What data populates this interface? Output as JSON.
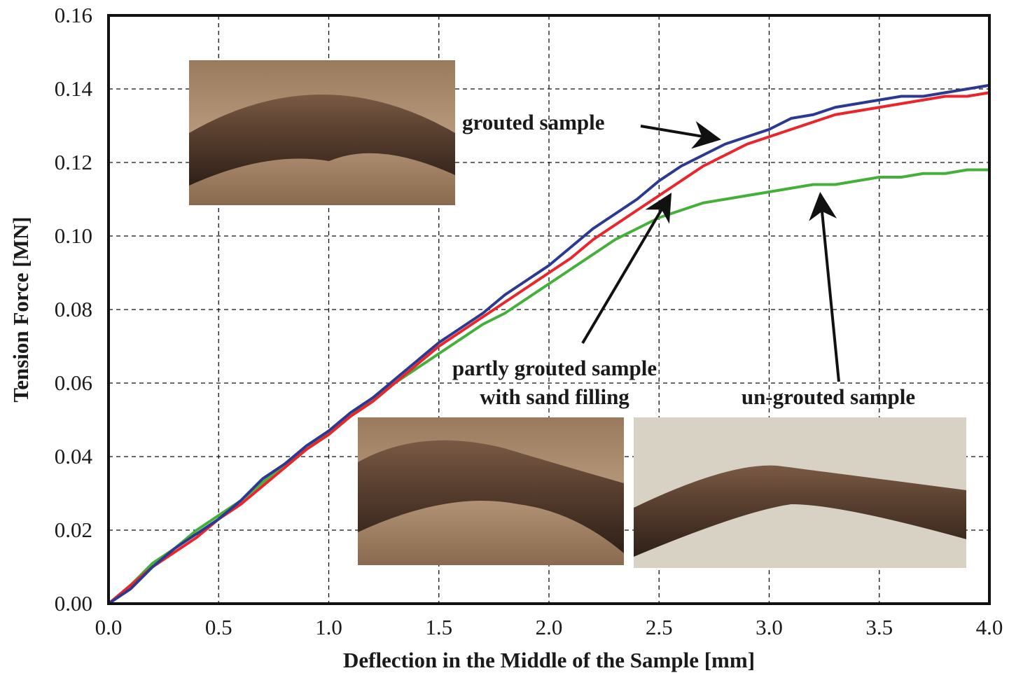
{
  "chart_data": {
    "type": "line",
    "x_label": "Deflection in the Middle of the Sample [mm]",
    "y_label": "Tension Force [MN]",
    "x": [
      0,
      0.1,
      0.2,
      0.3,
      0.4,
      0.5,
      0.6,
      0.7,
      0.8,
      0.9,
      1.0,
      1.1,
      1.2,
      1.3,
      1.4,
      1.5,
      1.6,
      1.7,
      1.8,
      1.9,
      2.0,
      2.1,
      2.2,
      2.3,
      2.4,
      2.5,
      2.6,
      2.7,
      2.8,
      2.9,
      3.0,
      3.1,
      3.2,
      3.3,
      3.4,
      3.5,
      3.6,
      3.7,
      3.8,
      3.9,
      4.0
    ],
    "series": [
      {
        "color": "#2b3990",
        "values": [
          0,
          0.004,
          0.01,
          0.015,
          0.019,
          0.023,
          0.028,
          0.034,
          0.038,
          0.043,
          0.047,
          0.052,
          0.056,
          0.061,
          0.066,
          0.071,
          0.075,
          0.079,
          0.084,
          0.088,
          0.092,
          0.097,
          0.102,
          0.106,
          0.11,
          0.115,
          0.119,
          0.122,
          0.125,
          0.127,
          0.129,
          0.132,
          0.133,
          0.135,
          0.136,
          0.137,
          0.138,
          0.138,
          0.139,
          0.14,
          0.141
        ]
      },
      {
        "color": "#e8262b",
        "values": [
          0,
          0.005,
          0.01,
          0.014,
          0.018,
          0.023,
          0.027,
          0.032,
          0.037,
          0.042,
          0.046,
          0.051,
          0.055,
          0.06,
          0.065,
          0.07,
          0.074,
          0.078,
          0.082,
          0.086,
          0.09,
          0.094,
          0.099,
          0.103,
          0.107,
          0.111,
          0.115,
          0.119,
          0.122,
          0.125,
          0.127,
          0.129,
          0.131,
          0.133,
          0.134,
          0.135,
          0.136,
          0.137,
          0.138,
          0.138,
          0.139
        ]
      },
      {
        "color": "#44b03a",
        "values": [
          0,
          0.005,
          0.011,
          0.015,
          0.02,
          0.024,
          0.028,
          0.033,
          0.038,
          0.042,
          0.047,
          0.051,
          0.056,
          0.06,
          0.064,
          0.068,
          0.072,
          0.076,
          0.079,
          0.083,
          0.087,
          0.091,
          0.095,
          0.099,
          0.102,
          0.105,
          0.107,
          0.109,
          0.11,
          0.111,
          0.112,
          0.113,
          0.114,
          0.114,
          0.115,
          0.116,
          0.116,
          0.117,
          0.117,
          0.118,
          0.118
        ]
      }
    ],
    "annotations": [
      {
        "text": "grouted sample"
      },
      {
        "lines": [
          "partly grouted sample",
          "with sand filling"
        ]
      },
      {
        "text": "un-grouted sample"
      }
    ],
    "xlim": [
      0,
      4.0
    ],
    "ylim": [
      0,
      0.16
    ],
    "xticks": [
      {
        "value": 0,
        "label": "0.0"
      },
      0.5,
      {
        "value": 1,
        "label": "1.0"
      },
      1.5,
      {
        "value": 2,
        "label": "2.0"
      },
      2.5,
      {
        "value": 3,
        "label": "3.0"
      },
      3.5,
      {
        "value": 4,
        "label": "4.0"
      }
    ],
    "yticks": [
      {
        "value": 0,
        "label": "0.00"
      },
      {
        "value": 0.02,
        "label": "0.02"
      },
      {
        "value": 0.04,
        "label": "0.04"
      },
      {
        "value": 0.06,
        "label": "0.06"
      },
      {
        "value": 0.08,
        "label": "0.08"
      },
      {
        "value": 0.1,
        "label": "0.10"
      },
      {
        "value": 0.12,
        "label": "0.12"
      },
      {
        "value": 0.14,
        "label": "0.14"
      },
      {
        "value": 0.16,
        "label": "0.16"
      }
    ],
    "grid": true
  }
}
